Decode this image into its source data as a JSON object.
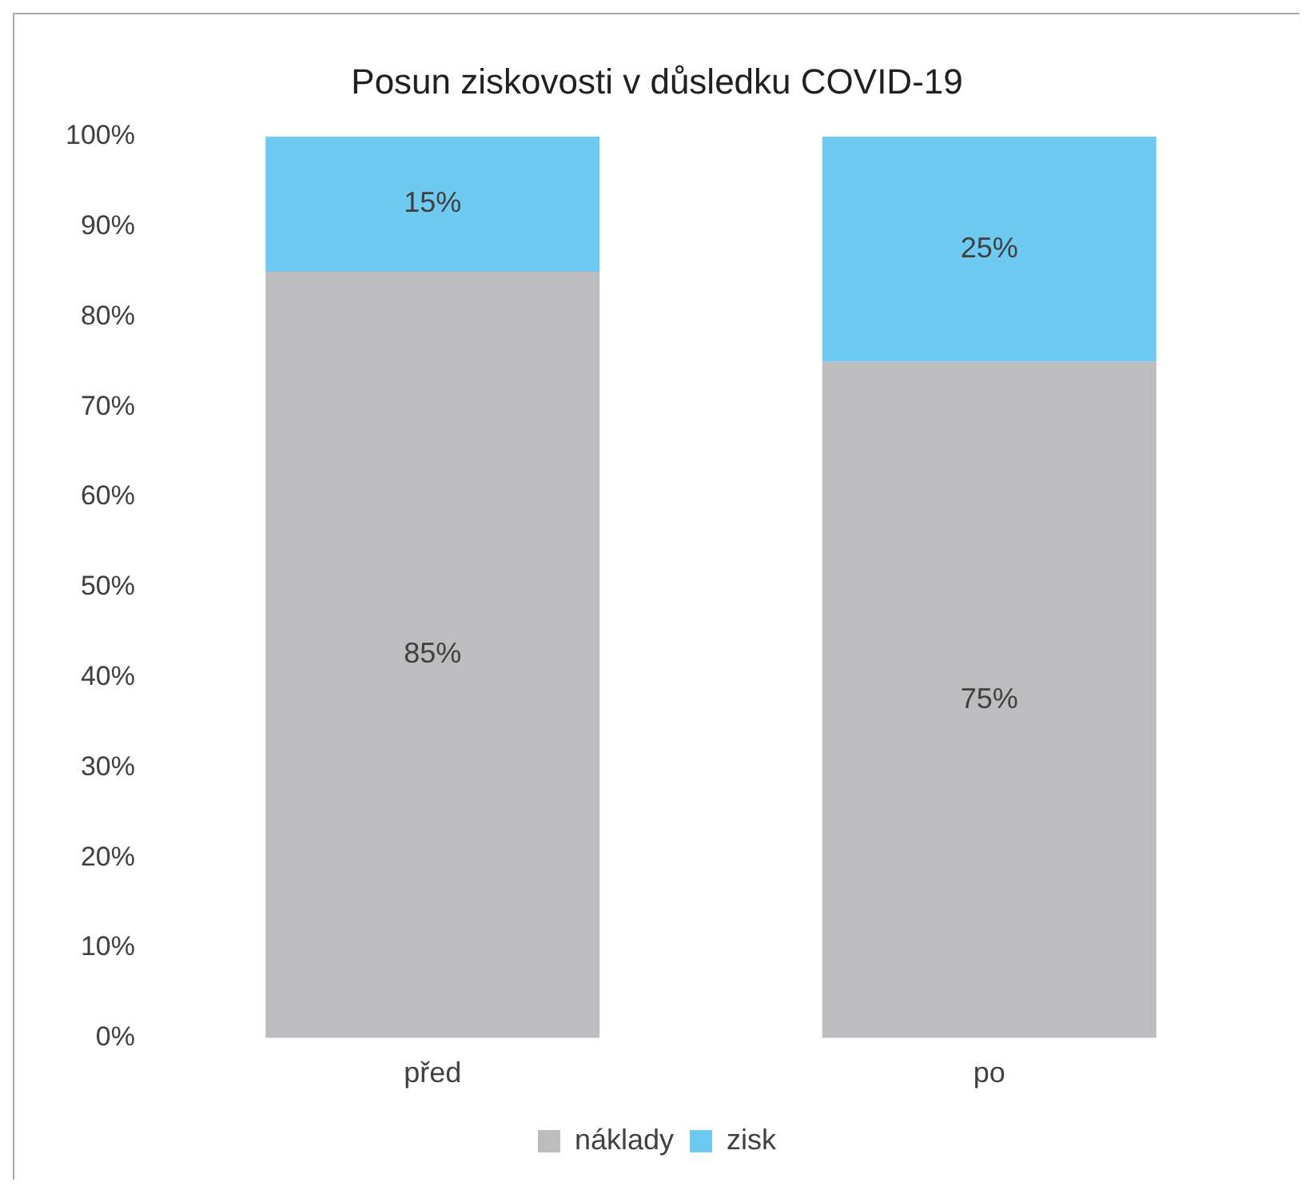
{
  "chart_data": {
    "type": "bar",
    "title": "Posun ziskovosti v důsledku COVID-19",
    "categories": [
      "před",
      "po"
    ],
    "stacked": true,
    "series": [
      {
        "name": "náklady",
        "color": "#bdbdbf",
        "values": [
          85,
          75
        ],
        "value_labels": [
          "85%",
          "75%"
        ]
      },
      {
        "name": "zisk",
        "color": "#6ecaf0",
        "values": [
          15,
          25
        ],
        "value_labels": [
          "15%",
          "25%"
        ]
      }
    ],
    "ylim": [
      0,
      100
    ],
    "yticks": [
      {
        "value": 0,
        "label": "0%"
      },
      {
        "value": 10,
        "label": "10%"
      },
      {
        "value": 20,
        "label": "20%"
      },
      {
        "value": 30,
        "label": "30%"
      },
      {
        "value": 40,
        "label": "40%"
      },
      {
        "value": 50,
        "label": "50%"
      },
      {
        "value": 60,
        "label": "60%"
      },
      {
        "value": 70,
        "label": "70%"
      },
      {
        "value": 80,
        "label": "80%"
      },
      {
        "value": 90,
        "label": "90%"
      },
      {
        "value": 100,
        "label": "100%"
      }
    ],
    "legend": "bottom"
  }
}
